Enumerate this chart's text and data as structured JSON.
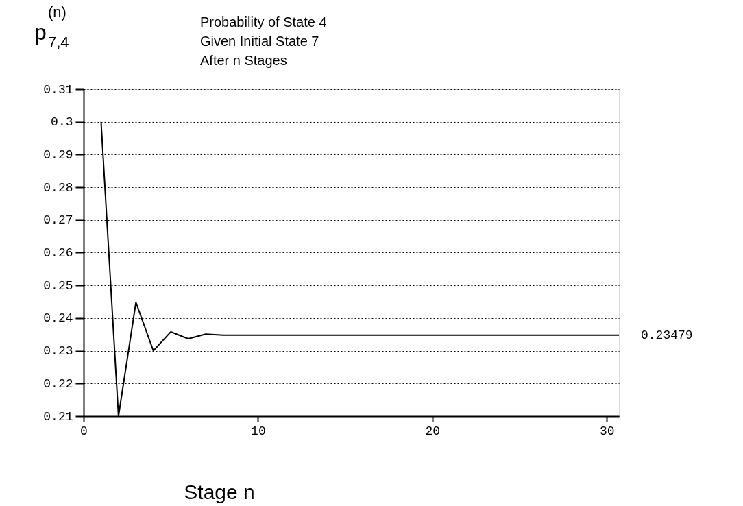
{
  "chart_data": {
    "type": "line",
    "title": "Probability of State 4\nGiven Initial State 7\nAfter n Stages",
    "xlabel": "Stage n",
    "ylabel": "p$_{7,4}$$^{(n)}$",
    "series": [
      {
        "color": "#000000",
        "x": [
          1,
          2,
          3,
          4,
          5,
          6,
          7,
          8,
          30.7
        ],
        "values": [
          0.3,
          0.21,
          0.2448,
          0.23,
          0.2358,
          0.2337,
          0.2351,
          0.23479,
          0.23479
        ]
      }
    ],
    "xlim": [
      0,
      30.7
    ],
    "xticks": [
      0,
      10,
      20,
      30
    ],
    "ylim": [
      0.21,
      0.31
    ],
    "yticks": [
      0.21,
      0.22,
      0.23,
      0.24,
      0.25,
      0.26,
      0.27,
      0.28,
      0.29,
      0.3,
      0.31
    ],
    "annotations": [
      {
        "text": "0.23479",
        "x": 30.7,
        "y": 0.23479
      }
    ],
    "grid": true,
    "line_style": "solid",
    "marker": "none"
  }
}
